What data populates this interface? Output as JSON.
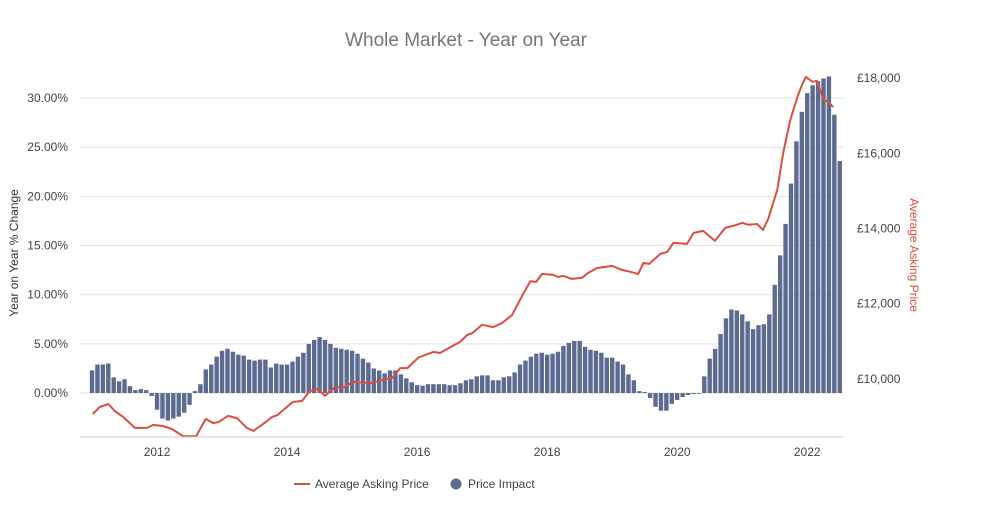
{
  "chart_data": {
    "type": "bar+line",
    "title": "Whole Market - Year on Year",
    "xlabel": "",
    "ylabel": "Year on Year % Change",
    "y2label": "Average Asking Price",
    "xlim": [
      2010.815,
      2022.55
    ],
    "ylim": [
      -4.47,
      33.36
    ],
    "y2lim": [
      8458,
      18346
    ],
    "x_ticks": [
      2012,
      2014,
      2016,
      2018,
      2020,
      2022
    ],
    "x_tick_labels": [
      "2012",
      "2014",
      "2016",
      "2018",
      "2020",
      "2022"
    ],
    "y_ticks": [
      0,
      5,
      10,
      15,
      20,
      25,
      30
    ],
    "y_tick_labels": [
      "0.00%",
      "5.00%",
      "10.00%",
      "15.00%",
      "20.00%",
      "25.00%",
      "30.00%"
    ],
    "y2_ticks": [
      10000,
      12000,
      14000,
      16000,
      18000
    ],
    "y2_tick_labels": [
      "£10,000",
      "£12,000",
      "£14,000",
      "£16,000",
      "£18,000"
    ],
    "grid": true,
    "legend_position": "bottom",
    "legend": [
      "Average Asking Price",
      "Price Impact"
    ],
    "colors": {
      "bar": "#5d6b91",
      "line": "#d9503f",
      "grid": "#e3e3e3"
    },
    "bar_series": {
      "name": "Price Impact",
      "start_year": 2011.0,
      "frequency": "monthly",
      "values": [
        2.3,
        2.9,
        2.9,
        3.0,
        1.6,
        1.2,
        1.4,
        0.7,
        0.3,
        0.4,
        0.3,
        -0.3,
        -1.7,
        -2.6,
        -2.8,
        -2.6,
        -2.4,
        -2.0,
        -1.2,
        0.2,
        0.9,
        2.4,
        2.9,
        3.7,
        4.3,
        4.5,
        4.2,
        3.9,
        3.8,
        3.4,
        3.3,
        3.4,
        3.4,
        2.6,
        3.0,
        2.9,
        2.9,
        3.2,
        3.7,
        4.1,
        5.0,
        5.4,
        5.7,
        5.4,
        5.0,
        4.6,
        4.5,
        4.4,
        4.3,
        4.0,
        3.5,
        3.1,
        2.5,
        2.3,
        2.0,
        2.3,
        2.3,
        1.9,
        1.5,
        1.1,
        0.8,
        0.75,
        0.9,
        0.9,
        0.9,
        0.9,
        0.8,
        0.8,
        1.0,
        1.3,
        1.4,
        1.7,
        1.8,
        1.8,
        1.3,
        1.3,
        1.6,
        1.7,
        2.1,
        2.9,
        3.3,
        3.7,
        4.0,
        4.1,
        3.9,
        4.0,
        4.2,
        4.8,
        5.1,
        5.3,
        5.3,
        4.7,
        4.4,
        4.3,
        4.1,
        3.6,
        3.6,
        3.2,
        2.9,
        1.9,
        1.3,
        0.2,
        0.1,
        -0.5,
        -1.4,
        -1.8,
        -1.8,
        -1.1,
        -0.7,
        -0.4,
        -0.2,
        -0.1,
        0.0,
        1.7,
        3.5,
        4.5,
        6.0,
        7.6,
        8.5,
        8.4,
        8.0,
        7.3,
        6.5,
        6.9,
        7.0,
        8.0,
        11.0,
        14.0,
        17.2,
        21.3,
        25.6,
        28.6,
        30.5,
        31.3,
        31.7,
        32.0,
        32.2,
        28.3,
        23.6
      ]
    },
    "line_series": {
      "name": "Average Asking Price",
      "points": [
        [
          2011.01,
          9070
        ],
        [
          2011.12,
          9255
        ],
        [
          2011.25,
          9335
        ],
        [
          2011.35,
          9150
        ],
        [
          2011.48,
          8990
        ],
        [
          2011.66,
          8700
        ],
        [
          2011.85,
          8700
        ],
        [
          2011.94,
          8780
        ],
        [
          2012.09,
          8750
        ],
        [
          2012.23,
          8670
        ],
        [
          2012.4,
          8480
        ],
        [
          2012.6,
          8480
        ],
        [
          2012.75,
          8940
        ],
        [
          2012.86,
          8830
        ],
        [
          2012.94,
          8850
        ],
        [
          2013.09,
          9020
        ],
        [
          2013.23,
          8960
        ],
        [
          2013.38,
          8700
        ],
        [
          2013.48,
          8620
        ],
        [
          2013.63,
          8800
        ],
        [
          2013.77,
          8990
        ],
        [
          2013.85,
          9040
        ],
        [
          2014.09,
          9390
        ],
        [
          2014.23,
          9415
        ],
        [
          2014.35,
          9680
        ],
        [
          2014.48,
          9730
        ],
        [
          2014.58,
          9550
        ],
        [
          2014.74,
          9790
        ],
        [
          2014.85,
          9760
        ],
        [
          2015.02,
          9920
        ],
        [
          2015.28,
          9890
        ],
        [
          2015.48,
          9975
        ],
        [
          2015.62,
          10030
        ],
        [
          2015.74,
          10290
        ],
        [
          2015.85,
          10290
        ],
        [
          2016.02,
          10570
        ],
        [
          2016.25,
          10720
        ],
        [
          2016.35,
          10690
        ],
        [
          2016.66,
          10985
        ],
        [
          2016.77,
          11170
        ],
        [
          2016.85,
          11220
        ],
        [
          2017.0,
          11440
        ],
        [
          2017.17,
          11380
        ],
        [
          2017.31,
          11490
        ],
        [
          2017.46,
          11700
        ],
        [
          2017.62,
          12230
        ],
        [
          2017.74,
          12600
        ],
        [
          2017.83,
          12580
        ],
        [
          2017.92,
          12790
        ],
        [
          2018.09,
          12770
        ],
        [
          2018.17,
          12710
        ],
        [
          2018.25,
          12740
        ],
        [
          2018.38,
          12660
        ],
        [
          2018.54,
          12690
        ],
        [
          2018.63,
          12820
        ],
        [
          2018.77,
          12950
        ],
        [
          2019.0,
          13005
        ],
        [
          2019.15,
          12900
        ],
        [
          2019.28,
          12850
        ],
        [
          2019.4,
          12790
        ],
        [
          2019.48,
          13085
        ],
        [
          2019.57,
          13060
        ],
        [
          2019.74,
          13325
        ],
        [
          2019.85,
          13380
        ],
        [
          2019.94,
          13620
        ],
        [
          2020.15,
          13590
        ],
        [
          2020.25,
          13880
        ],
        [
          2020.4,
          13935
        ],
        [
          2020.58,
          13670
        ],
        [
          2020.74,
          14016
        ],
        [
          2020.86,
          14070
        ],
        [
          2021.0,
          14150
        ],
        [
          2021.09,
          14100
        ],
        [
          2021.23,
          14120
        ],
        [
          2021.32,
          13960
        ],
        [
          2021.4,
          14255
        ],
        [
          2021.54,
          15030
        ],
        [
          2021.63,
          16010
        ],
        [
          2021.74,
          16890
        ],
        [
          2021.85,
          17500
        ],
        [
          2021.92,
          17820
        ],
        [
          2021.98,
          18030
        ],
        [
          2022.08,
          17900
        ],
        [
          2022.15,
          17925
        ],
        [
          2022.25,
          17420
        ],
        [
          2022.32,
          17370
        ],
        [
          2022.4,
          17230
        ]
      ]
    }
  }
}
